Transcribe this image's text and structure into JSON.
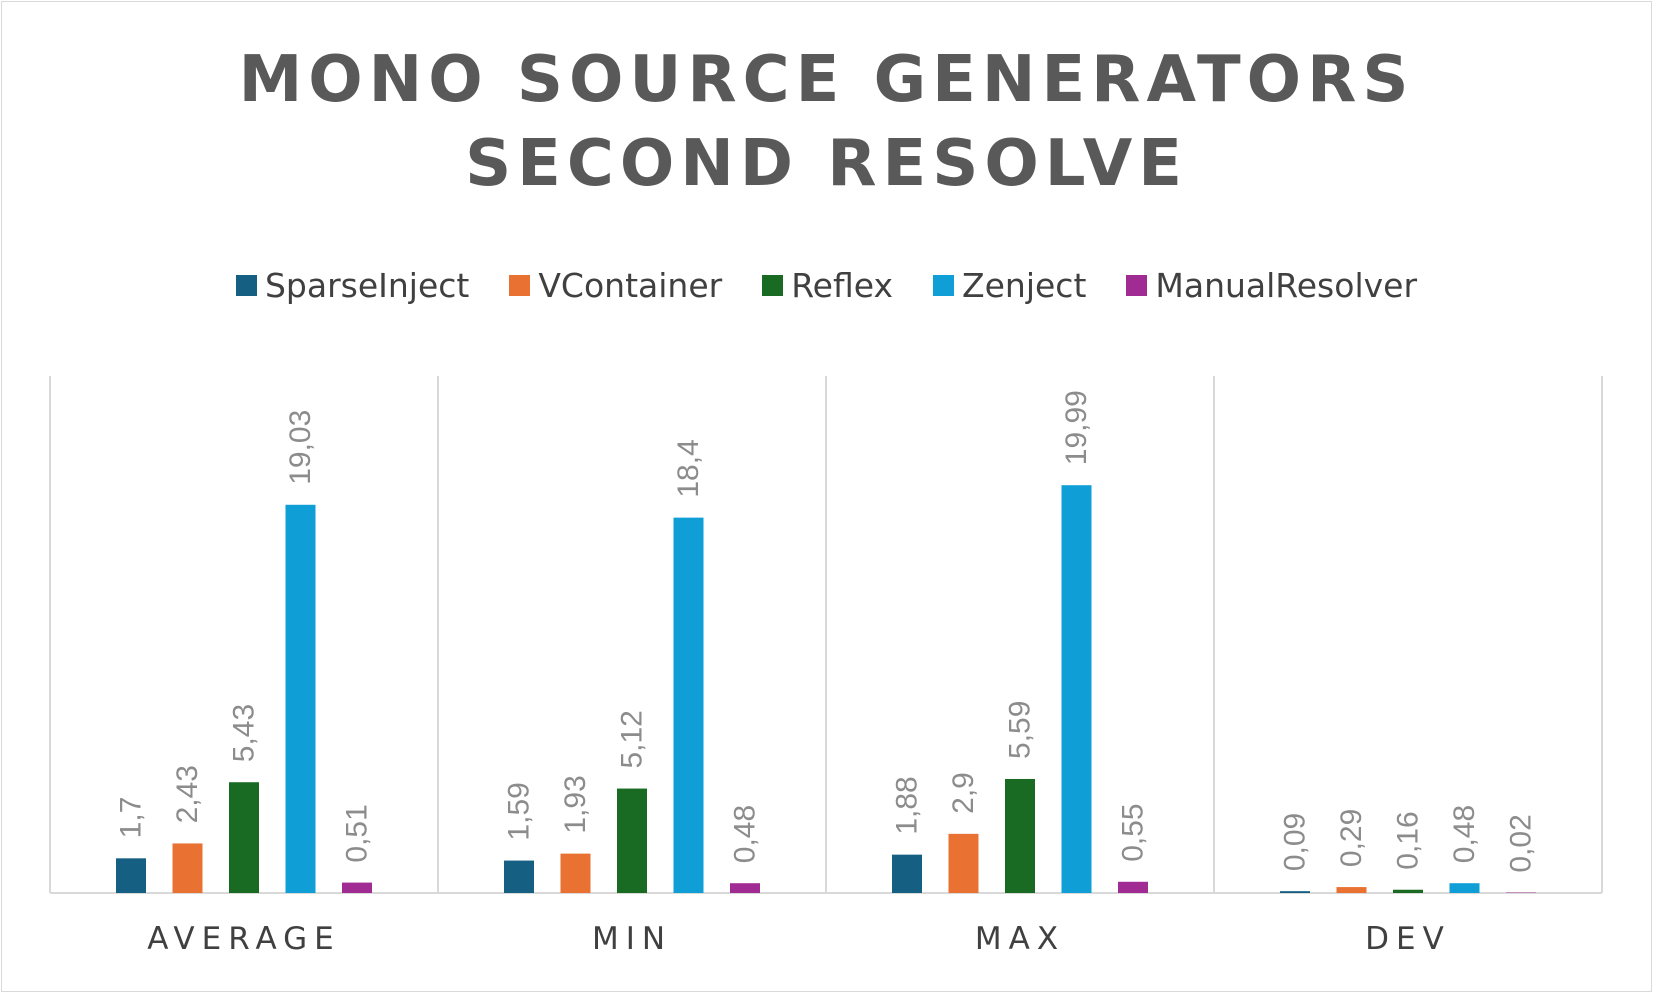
{
  "chart_data": {
    "type": "bar",
    "title_lines": [
      "MONO SOURCE GENERATORS",
      "SECOND RESOLVE"
    ],
    "categories": [
      "AVERAGE",
      "MIN",
      "MAX",
      "DEV"
    ],
    "series": [
      {
        "name": "SparseInject",
        "color": "#156082",
        "values": [
          1.7,
          1.59,
          1.88,
          0.09
        ],
        "labels": [
          "1,7",
          "1,59",
          "1,88",
          "0,09"
        ]
      },
      {
        "name": "VContainer",
        "color": "#e97132",
        "values": [
          2.43,
          1.93,
          2.9,
          0.29
        ],
        "labels": [
          "2,43",
          "1,93",
          "2,9",
          "0,29"
        ]
      },
      {
        "name": "Reflex",
        "color": "#196b24",
        "values": [
          5.43,
          5.12,
          5.59,
          0.16
        ],
        "labels": [
          "5,43",
          "5,12",
          "5,59",
          "0,16"
        ]
      },
      {
        "name": "Zenject",
        "color": "#0f9ed5",
        "values": [
          19.03,
          18.4,
          19.99,
          0.48
        ],
        "labels": [
          "19,03",
          "18,4",
          "19,99",
          "0,48"
        ]
      },
      {
        "name": "ManualResolver",
        "color": "#a02b93",
        "values": [
          0.51,
          0.48,
          0.55,
          0.02
        ],
        "labels": [
          "0,51",
          "0,48",
          "0,55",
          "0,02"
        ]
      }
    ],
    "ylim": [
      0,
      20
    ],
    "legend_position": "top",
    "grid": "vertical category separators"
  }
}
